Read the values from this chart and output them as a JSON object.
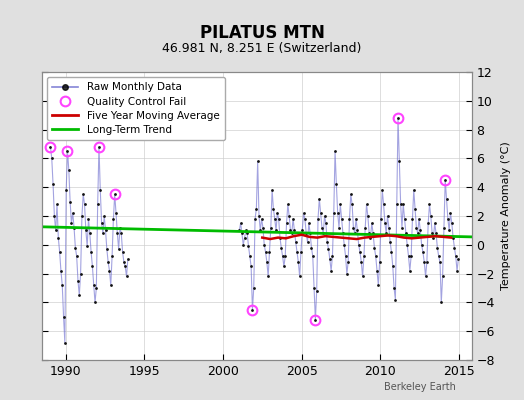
{
  "title": "PILATUS MTN",
  "subtitle": "46.981 N, 8.251 E (Switzerland)",
  "ylabel": "Temperature Anomaly (°C)",
  "watermark": "Berkeley Earth",
  "ylim": [
    -8,
    12
  ],
  "xlim": [
    1988.5,
    2015.8
  ],
  "xticks": [
    1990,
    1995,
    2000,
    2005,
    2010,
    2015
  ],
  "yticks": [
    -8,
    -6,
    -4,
    -2,
    0,
    2,
    4,
    6,
    8,
    10,
    12
  ],
  "bg_color": "#e0e0e0",
  "plot_bg_color": "#ffffff",
  "line_color": "#6666cc",
  "line_alpha": 0.6,
  "marker_color": "#111111",
  "qc_color": "#ff44ff",
  "moving_avg_color": "#cc0000",
  "trend_color": "#00bb00",
  "raw_years": [
    1989.042,
    1989.125,
    1989.208,
    1989.292,
    1989.375,
    1989.458,
    1989.542,
    1989.625,
    1989.708,
    1989.792,
    1989.875,
    1989.958,
    1990.042,
    1990.125,
    1990.208,
    1990.292,
    1990.375,
    1990.458,
    1990.542,
    1990.625,
    1990.708,
    1990.792,
    1990.875,
    1990.958,
    1991.042,
    1991.125,
    1991.208,
    1991.292,
    1991.375,
    1991.458,
    1991.542,
    1991.625,
    1991.708,
    1991.792,
    1991.875,
    1991.958,
    1992.042,
    1992.125,
    1992.208,
    1992.292,
    1992.375,
    1992.458,
    1992.542,
    1992.625,
    1992.708,
    1992.792,
    1992.875,
    1992.958,
    1993.042,
    1993.125,
    1993.208,
    1993.292,
    1993.375,
    1993.458,
    1993.542,
    1993.625,
    1993.708,
    1993.792,
    1993.875,
    1993.958,
    2001.042,
    2001.125,
    2001.208,
    2001.292,
    2001.375,
    2001.458,
    2001.542,
    2001.625,
    2001.708,
    2001.792,
    2001.875,
    2001.958,
    2002.042,
    2002.125,
    2002.208,
    2002.292,
    2002.375,
    2002.458,
    2002.542,
    2002.625,
    2002.708,
    2002.792,
    2002.875,
    2002.958,
    2003.042,
    2003.125,
    2003.208,
    2003.292,
    2003.375,
    2003.458,
    2003.542,
    2003.625,
    2003.708,
    2003.792,
    2003.875,
    2003.958,
    2004.042,
    2004.125,
    2004.208,
    2004.292,
    2004.375,
    2004.458,
    2004.542,
    2004.625,
    2004.708,
    2004.792,
    2004.875,
    2004.958,
    2005.042,
    2005.125,
    2005.208,
    2005.292,
    2005.375,
    2005.458,
    2005.542,
    2005.625,
    2005.708,
    2005.792,
    2005.875,
    2005.958,
    2006.042,
    2006.125,
    2006.208,
    2006.292,
    2006.375,
    2006.458,
    2006.542,
    2006.625,
    2006.708,
    2006.792,
    2006.875,
    2006.958,
    2007.042,
    2007.125,
    2007.208,
    2007.292,
    2007.375,
    2007.458,
    2007.542,
    2007.625,
    2007.708,
    2007.792,
    2007.875,
    2007.958,
    2008.042,
    2008.125,
    2008.208,
    2008.292,
    2008.375,
    2008.458,
    2008.542,
    2008.625,
    2008.708,
    2008.792,
    2008.875,
    2008.958,
    2009.042,
    2009.125,
    2009.208,
    2009.292,
    2009.375,
    2009.458,
    2009.542,
    2009.625,
    2009.708,
    2009.792,
    2009.875,
    2009.958,
    2010.042,
    2010.125,
    2010.208,
    2010.292,
    2010.375,
    2010.458,
    2010.542,
    2010.625,
    2010.708,
    2010.792,
    2010.875,
    2010.958,
    2011.042,
    2011.125,
    2011.208,
    2011.292,
    2011.375,
    2011.458,
    2011.542,
    2011.625,
    2011.708,
    2011.792,
    2011.875,
    2011.958,
    2012.042,
    2012.125,
    2012.208,
    2012.292,
    2012.375,
    2012.458,
    2012.542,
    2012.625,
    2012.708,
    2012.792,
    2012.875,
    2012.958,
    2013.042,
    2013.125,
    2013.208,
    2013.292,
    2013.375,
    2013.458,
    2013.542,
    2013.625,
    2013.708,
    2013.792,
    2013.875,
    2013.958,
    2014.042,
    2014.125,
    2014.208,
    2014.292,
    2014.375,
    2014.458,
    2014.542,
    2014.625,
    2014.708,
    2014.792,
    2014.875,
    2014.958
  ],
  "raw_values": [
    6.8,
    6.0,
    4.2,
    2.0,
    1.0,
    2.8,
    0.5,
    -0.5,
    -1.8,
    -2.8,
    -5.0,
    -6.8,
    3.8,
    6.5,
    5.2,
    3.0,
    1.5,
    2.2,
    1.2,
    -0.2,
    -0.8,
    -2.5,
    -3.5,
    -2.0,
    2.0,
    3.5,
    2.8,
    1.0,
    -0.1,
    1.8,
    0.8,
    -0.5,
    -1.5,
    -2.8,
    -4.0,
    -3.0,
    2.8,
    6.8,
    3.8,
    1.5,
    0.8,
    2.0,
    1.0,
    -0.3,
    -1.2,
    -1.8,
    -2.8,
    -0.8,
    1.8,
    3.5,
    2.2,
    0.8,
    -0.3,
    1.2,
    0.8,
    -0.5,
    -1.2,
    -1.5,
    -2.2,
    -1.0,
    1.0,
    1.5,
    0.8,
    0.0,
    0.5,
    1.0,
    0.8,
    -0.1,
    -0.8,
    -1.5,
    -4.5,
    -3.0,
    1.8,
    2.5,
    5.8,
    2.0,
    1.0,
    1.8,
    1.2,
    0.0,
    -0.5,
    -1.2,
    -2.2,
    -0.5,
    1.2,
    3.8,
    2.5,
    1.8,
    1.0,
    2.2,
    1.8,
    0.5,
    -0.2,
    -0.8,
    -1.5,
    -0.8,
    1.5,
    2.8,
    2.0,
    1.0,
    0.8,
    1.8,
    1.0,
    0.2,
    -0.5,
    -1.2,
    -2.2,
    -0.5,
    1.0,
    2.2,
    1.8,
    0.8,
    0.2,
    1.5,
    0.8,
    -0.2,
    -0.8,
    -3.0,
    -5.2,
    -3.2,
    1.8,
    3.2,
    2.2,
    1.2,
    0.8,
    2.0,
    1.5,
    0.2,
    -0.3,
    -1.0,
    -1.8,
    -0.8,
    2.2,
    6.5,
    4.2,
    2.2,
    1.2,
    2.8,
    1.8,
    0.8,
    0.0,
    -0.8,
    -2.0,
    -1.2,
    1.8,
    3.5,
    2.8,
    1.2,
    0.8,
    1.8,
    1.0,
    0.0,
    -0.5,
    -1.2,
    -2.2,
    -0.8,
    1.2,
    2.8,
    2.0,
    0.8,
    0.5,
    1.5,
    0.8,
    -0.2,
    -0.8,
    -1.8,
    -2.8,
    -1.2,
    1.8,
    3.8,
    2.8,
    1.5,
    0.8,
    2.0,
    1.2,
    0.2,
    -0.5,
    -1.5,
    -3.0,
    -3.8,
    2.8,
    8.8,
    5.8,
    2.8,
    1.2,
    2.8,
    1.8,
    0.8,
    0.0,
    -0.8,
    -1.8,
    -0.8,
    1.8,
    3.8,
    2.5,
    1.2,
    0.8,
    1.8,
    1.0,
    0.0,
    -0.5,
    -1.2,
    -2.2,
    -1.2,
    1.5,
    2.8,
    2.0,
    0.8,
    0.5,
    1.5,
    0.8,
    -0.2,
    -0.8,
    -1.2,
    -4.0,
    -2.2,
    1.2,
    4.5,
    3.2,
    1.8,
    1.0,
    2.2,
    1.5,
    0.5,
    -0.2,
    -0.8,
    -1.8,
    -1.0
  ],
  "qc_fail_points": [
    [
      1989.042,
      6.8
    ],
    [
      1990.125,
      6.5
    ],
    [
      1992.125,
      6.8
    ],
    [
      1993.125,
      3.5
    ],
    [
      2001.875,
      -4.5
    ],
    [
      2005.875,
      -5.2
    ],
    [
      2011.125,
      8.8
    ],
    [
      2014.125,
      4.5
    ]
  ],
  "moving_avg_years": [
    2002.5,
    2003.0,
    2003.5,
    2004.0,
    2004.5,
    2005.0,
    2005.5,
    2006.0,
    2006.5,
    2007.0,
    2007.5,
    2008.0,
    2008.5,
    2009.0,
    2009.5,
    2010.0,
    2010.5,
    2011.0,
    2011.5,
    2012.0,
    2012.5,
    2013.0,
    2013.5,
    2014.0,
    2014.5
  ],
  "moving_avg_values": [
    0.5,
    0.4,
    0.5,
    0.45,
    0.6,
    0.7,
    0.55,
    0.5,
    0.6,
    0.55,
    0.5,
    0.45,
    0.4,
    0.5,
    0.55,
    0.6,
    0.65,
    0.6,
    0.5,
    0.45,
    0.5,
    0.55,
    0.6,
    0.55,
    0.5
  ],
  "trend_x": [
    1988.5,
    2015.8
  ],
  "trend_y": [
    1.25,
    0.55
  ]
}
